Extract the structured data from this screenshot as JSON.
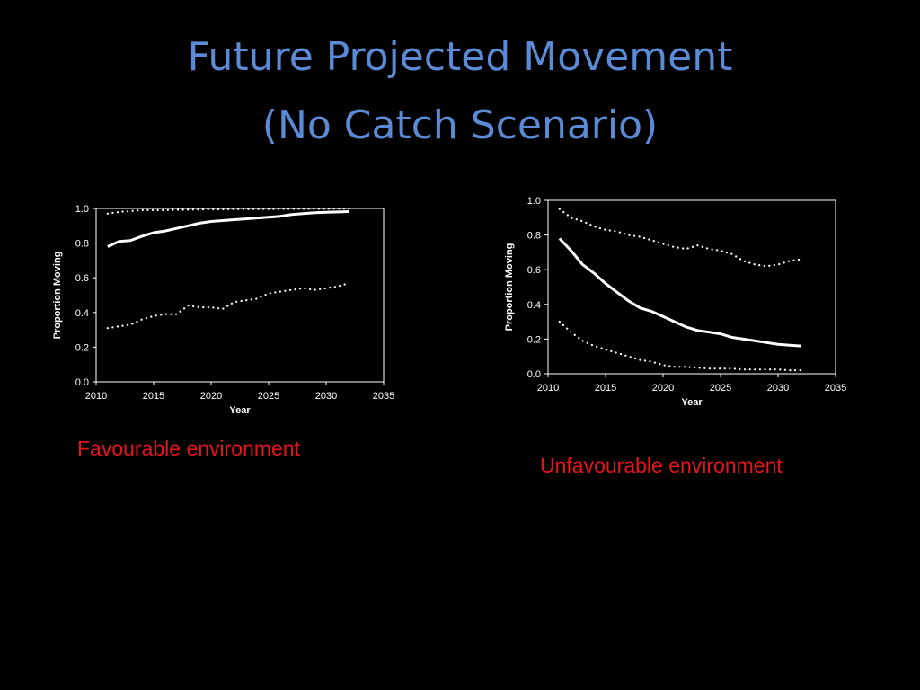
{
  "slide": {
    "title_line1": "Future Projected Movement",
    "title_line2": "(No Catch Scenario)",
    "caption_left": "Favourable environment",
    "caption_right": "Unfavourable environment"
  },
  "colors": {
    "title": "#5b8bd6",
    "caption": "#e8141c",
    "lines": "#ffffff",
    "background": "#000000"
  },
  "chart_data": [
    {
      "type": "line",
      "xlabel": "Year",
      "ylabel": "Proportion Moving",
      "xlim": [
        2010,
        2035
      ],
      "ylim": [
        0,
        1.0
      ],
      "xticks": [
        2010,
        2015,
        2020,
        2025,
        2030,
        2035
      ],
      "yticks": [
        0.0,
        0.2,
        0.4,
        0.6,
        0.8,
        1.0
      ],
      "grid": false,
      "x": [
        2011,
        2012,
        2013,
        2014,
        2015,
        2016,
        2017,
        2018,
        2019,
        2020,
        2021,
        2022,
        2023,
        2024,
        2025,
        2026,
        2027,
        2028,
        2029,
        2030,
        2031,
        2032
      ],
      "series": [
        {
          "style": "solid",
          "values": [
            0.78,
            0.81,
            0.815,
            0.84,
            0.86,
            0.87,
            0.885,
            0.9,
            0.915,
            0.925,
            0.93,
            0.935,
            0.94,
            0.945,
            0.95,
            0.955,
            0.965,
            0.97,
            0.975,
            0.978,
            0.98,
            0.982
          ]
        },
        {
          "style": "dotted",
          "values": [
            0.97,
            0.98,
            0.985,
            0.99,
            0.99,
            0.99,
            0.992,
            0.993,
            0.994,
            0.995,
            0.995,
            0.996,
            0.996,
            0.997,
            0.997,
            0.997,
            0.998,
            0.998,
            0.998,
            0.998,
            0.999,
            0.999
          ]
        },
        {
          "style": "dotted",
          "values": [
            0.31,
            0.32,
            0.33,
            0.36,
            0.38,
            0.39,
            0.39,
            0.44,
            0.43,
            0.43,
            0.42,
            0.46,
            0.47,
            0.48,
            0.51,
            0.52,
            0.53,
            0.54,
            0.53,
            0.54,
            0.55,
            0.57
          ]
        }
      ]
    },
    {
      "type": "line",
      "xlabel": "Year",
      "ylabel": "Proportion Moving",
      "xlim": [
        2010,
        2035
      ],
      "ylim": [
        0,
        1.0
      ],
      "xticks": [
        2010,
        2015,
        2020,
        2025,
        2030,
        2035
      ],
      "yticks": [
        0.0,
        0.2,
        0.4,
        0.6,
        0.8,
        1.0
      ],
      "grid": false,
      "x": [
        2011,
        2012,
        2013,
        2014,
        2015,
        2016,
        2017,
        2018,
        2019,
        2020,
        2021,
        2022,
        2023,
        2024,
        2025,
        2026,
        2027,
        2028,
        2029,
        2030,
        2031,
        2032
      ],
      "series": [
        {
          "style": "solid",
          "values": [
            0.78,
            0.71,
            0.63,
            0.58,
            0.52,
            0.47,
            0.42,
            0.38,
            0.36,
            0.33,
            0.3,
            0.27,
            0.25,
            0.24,
            0.23,
            0.21,
            0.2,
            0.19,
            0.18,
            0.17,
            0.165,
            0.16
          ]
        },
        {
          "style": "dotted",
          "values": [
            0.95,
            0.9,
            0.88,
            0.85,
            0.83,
            0.82,
            0.8,
            0.79,
            0.77,
            0.75,
            0.73,
            0.72,
            0.74,
            0.72,
            0.71,
            0.69,
            0.65,
            0.63,
            0.62,
            0.63,
            0.65,
            0.66
          ]
        },
        {
          "style": "dotted",
          "values": [
            0.3,
            0.24,
            0.19,
            0.16,
            0.14,
            0.12,
            0.1,
            0.08,
            0.07,
            0.05,
            0.04,
            0.04,
            0.035,
            0.03,
            0.03,
            0.03,
            0.025,
            0.025,
            0.025,
            0.025,
            0.02,
            0.02
          ]
        }
      ]
    }
  ]
}
